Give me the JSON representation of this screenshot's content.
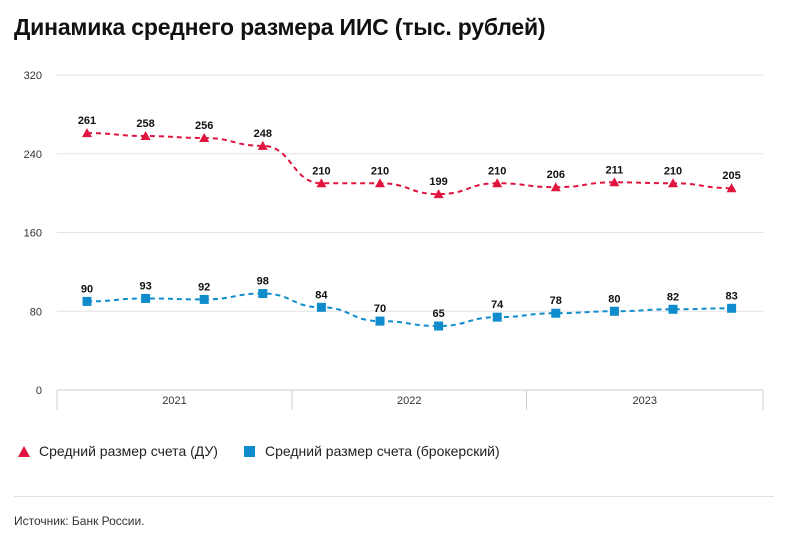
{
  "title": "Динамика среднего размера ИИС (тыс. рублей)",
  "source": "Источник: Банк России.",
  "colors": {
    "du": "#e0153f",
    "broker": "#0f8ccc",
    "grid": "#e3e3e3",
    "axis": "#cfcfcf"
  },
  "chart_data": {
    "type": "line",
    "ylim": [
      0,
      320
    ],
    "yticks": [
      0,
      80,
      160,
      240,
      320
    ],
    "year_labels": [
      "2021",
      "2022",
      "2023"
    ],
    "points_per_year": 4,
    "grid": true,
    "legend_position": "bottom-left",
    "series": [
      {
        "name": "Средний размер счета (ДУ)",
        "marker": "triangle",
        "values": [
          261,
          258,
          256,
          248,
          210,
          210,
          199,
          210,
          206,
          211,
          210,
          205
        ]
      },
      {
        "name": "Средний размер счета (брокерский)",
        "marker": "square",
        "values": [
          90,
          93,
          92,
          98,
          84,
          70,
          65,
          74,
          78,
          80,
          82,
          83
        ]
      }
    ]
  }
}
